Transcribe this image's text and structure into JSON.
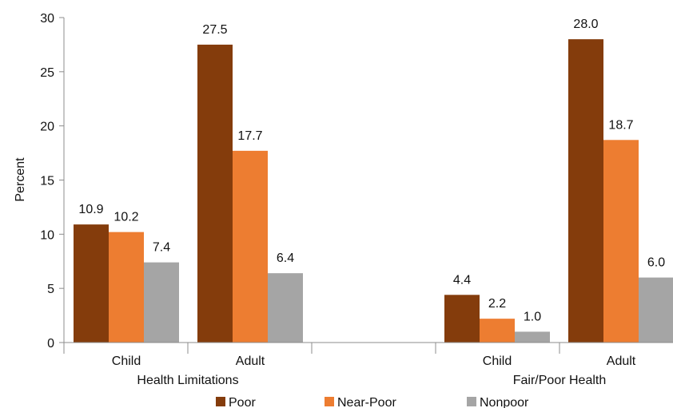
{
  "chart_data": {
    "type": "bar",
    "ylabel": "Percent",
    "ylim": [
      0,
      30
    ],
    "yticks": [
      "0",
      "5",
      "10",
      "15",
      "20",
      "25",
      "30"
    ],
    "groups": [
      {
        "label": "Health Limitations",
        "categories": [
          "Child",
          "Adult"
        ]
      },
      {
        "label": "Fair/Poor Health",
        "categories": [
          "Child",
          "Adult"
        ]
      }
    ],
    "series": [
      {
        "name": "Poor",
        "color": "#843C0C",
        "values": [
          10.9,
          27.5,
          4.4,
          28.0
        ],
        "labels": [
          "10.9",
          "27.5",
          "4.4",
          "28.0"
        ]
      },
      {
        "name": "Near-Poor",
        "color": "#ED7D31",
        "values": [
          10.2,
          17.7,
          2.2,
          18.7
        ],
        "labels": [
          "10.2",
          "17.7",
          "2.2",
          "18.7"
        ]
      },
      {
        "name": "Nonpoor",
        "color": "#A5A5A5",
        "values": [
          7.4,
          6.4,
          1.0,
          6.0
        ],
        "labels": [
          "7.4",
          "6.4",
          "1.0",
          "6.0"
        ]
      }
    ],
    "legend": "bottom",
    "grid": false
  }
}
